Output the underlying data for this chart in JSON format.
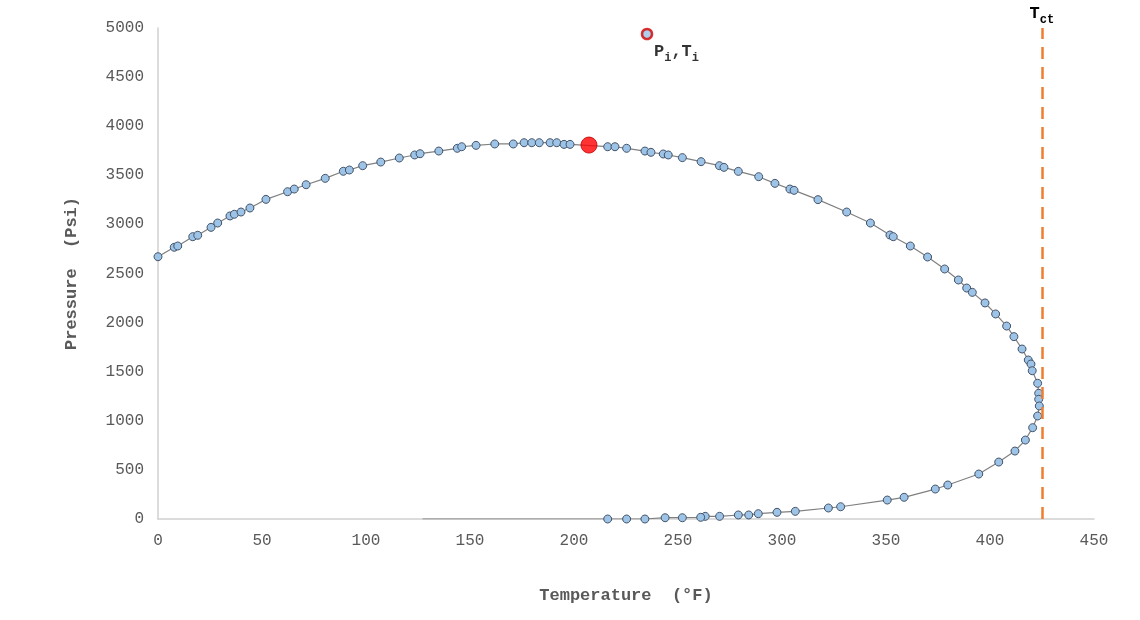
{
  "chart_data": {
    "type": "scatter",
    "xlabel": "Temperature  (°F)",
    "ylabel": "Pressure  (Psi)",
    "xlim": [
      0,
      450
    ],
    "xticks": [
      0,
      50,
      100,
      150,
      200,
      250,
      300,
      350,
      400,
      450
    ],
    "ylim": [
      0,
      5000
    ],
    "yticks": [
      0,
      500,
      1000,
      1500,
      2000,
      2500,
      3000,
      3500,
      4000,
      4500,
      5000
    ],
    "grid": false,
    "marker": "circle",
    "series": [
      {
        "type": "line",
        "color": "#808080",
        "marker": "none",
        "x": [
          127.4,
          216.2
        ],
        "values": [
          0,
          0
        ]
      },
      {
        "type": "line",
        "color": "#9dc3e6",
        "x": [
          0,
          7.8,
          9.5,
          16.7,
          19.1,
          25.5,
          28.7,
          34.6,
          36.7,
          39.9,
          44.2,
          51.9,
          62.3,
          65.5,
          71.2,
          80.4,
          89.1,
          92,
          98.4,
          107.1,
          116,
          123.4,
          126,
          135,
          143.9,
          146,
          152.9,
          161.9,
          170.8,
          176,
          179.7,
          183.3,
          188.5,
          191.7,
          195.2,
          198.1,
          216.2,
          219.7,
          225.3,
          234.1,
          237,
          242.9,
          245.3,
          252.1,
          261.1,
          269.9,
          272.1,
          279,
          288.8,
          296.6,
          303.8,
          305.8,
          317.3,
          331.1,
          342.5,
          351.9,
          353.5,
          361.7,
          370,
          378.2,
          384.8,
          388.8,
          391.5,
          397.6,
          402.7,
          408,
          411.5,
          415.4,
          418.4,
          419.7,
          420.3,
          422.9,
          423.4,
          423.4,
          423.7,
          422.9,
          420.5,
          417,
          412,
          404.2,
          394.6,
          379.7,
          373.7,
          358.7,
          350.6,
          328.2,
          322.3,
          306.4,
          297.6,
          288.6,
          284,
          279,
          270,
          263.1,
          260.9,
          252.1,
          243.8,
          234.1,
          225.3,
          216.2
        ],
        "values": [
          2671,
          2767,
          2780,
          2875,
          2889,
          2970,
          3014,
          3086,
          3103,
          3126,
          3167,
          3255,
          3333,
          3360,
          3404,
          3469,
          3541,
          3554,
          3598,
          3635,
          3676,
          3707,
          3720,
          3747,
          3775,
          3791,
          3805,
          3819,
          3819,
          3832,
          3832,
          3832,
          3832,
          3832,
          3815,
          3815,
          3791,
          3791,
          3775,
          3747,
          3734,
          3717,
          3707,
          3680,
          3639,
          3598,
          3581,
          3540,
          3486,
          3418,
          3360,
          3347,
          3252,
          3126,
          3014,
          2892,
          2875,
          2780,
          2668,
          2546,
          2434,
          2352,
          2308,
          2200,
          2088,
          1965,
          1857,
          1731,
          1619,
          1578,
          1510,
          1382,
          1280,
          1219,
          1151,
          1049,
          930,
          804,
          692,
          580,
          458,
          346,
          305,
          221,
          193,
          125,
          112,
          78,
          68,
          54,
          41,
          41,
          27,
          27,
          17,
          13,
          13,
          0,
          0,
          0
        ]
      },
      {
        "color": "#ff0000",
        "x": [
          207.2
        ],
        "values": [
          3808
        ]
      },
      {
        "color": "#d00000",
        "x": [
          235.1
        ],
        "values": [
          4939
        ]
      }
    ],
    "ref_lines": [
      {
        "axis": "x",
        "value": 424.9,
        "label": "T$_{ct}$",
        "color": "#ed7d31",
        "line_style": "dashed"
      }
    ],
    "annotations": [
      {
        "text": "P$_{i}$,T$_{i}$",
        "x": 235.1,
        "y": 4939
      }
    ]
  }
}
